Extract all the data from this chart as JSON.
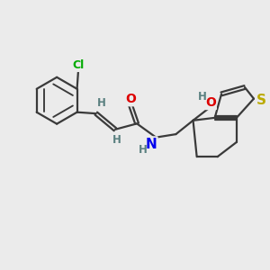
{
  "background_color": "#ebebeb",
  "bond_color": "#3a3a3a",
  "bond_width": 1.6,
  "atom_colors": {
    "Cl": "#00aa00",
    "O": "#dd0000",
    "N": "#0000ee",
    "S": "#bbaa00",
    "H": "#5a8080",
    "C": "#3a3a3a"
  },
  "font_size_atom": 10,
  "font_size_H": 8.5,
  "font_size_Cl": 9
}
